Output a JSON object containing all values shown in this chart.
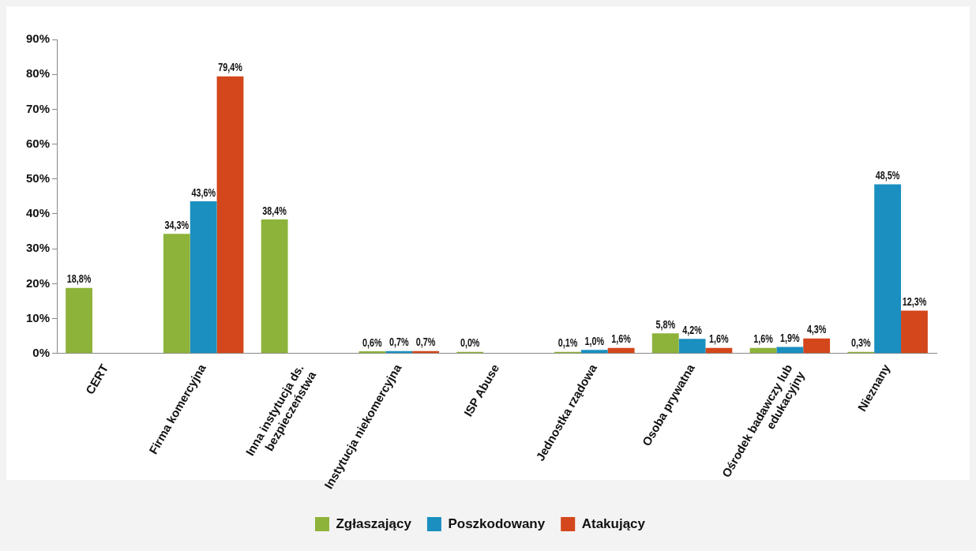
{
  "chart_data": {
    "type": "bar",
    "categories": [
      "CERT",
      "Firma komercyjna",
      "Inna instytucja ds. bezpieczeństwa",
      "Instytucja niekomercyjna",
      "ISP Abuse",
      "Jednostka rządowa",
      "Osoba prywatna",
      "Ośrodek badawczy lub edukacyjny",
      "Nieznany"
    ],
    "series": [
      {
        "name": "Zgłaszający",
        "color": "#8db33a",
        "values": [
          18.8,
          34.3,
          38.4,
          0.6,
          0.0,
          0.1,
          5.8,
          1.6,
          0.3
        ],
        "value_labels": [
          "18,8%",
          "34,3%",
          "38,4%",
          "0,6%",
          "0,0%",
          "0,1%",
          "5,8%",
          "1,6%",
          "0,3%"
        ]
      },
      {
        "name": "Poszkodowany",
        "color": "#1a8fc0",
        "values": [
          null,
          43.6,
          null,
          0.7,
          null,
          1.0,
          4.2,
          1.9,
          48.5
        ],
        "value_labels": [
          null,
          "43,6%",
          null,
          "0,7%",
          null,
          "1,0%",
          "4,2%",
          "1,9%",
          "48,5%"
        ]
      },
      {
        "name": "Atakujący",
        "color": "#d4461c",
        "values": [
          null,
          79.4,
          null,
          0.7,
          null,
          1.6,
          1.6,
          4.3,
          12.3
        ],
        "value_labels": [
          null,
          "79,4%",
          null,
          "0,7%",
          null,
          "1,6%",
          "1,6%",
          "4,3%",
          "12,3%"
        ]
      }
    ],
    "ylim": [
      0,
      90
    ],
    "yticks": [
      {
        "value": 0,
        "label": "0%"
      },
      {
        "value": 10,
        "label": "10%"
      },
      {
        "value": 20,
        "label": "20%"
      },
      {
        "value": 30,
        "label": "30%"
      },
      {
        "value": 40,
        "label": "40%"
      },
      {
        "value": 50,
        "label": "50%"
      },
      {
        "value": 60,
        "label": "60%"
      },
      {
        "value": 70,
        "label": "70%"
      },
      {
        "value": 80,
        "label": "80%"
      },
      {
        "value": 90,
        "label": "90%"
      }
    ],
    "grid": false,
    "legend": "bottom"
  }
}
